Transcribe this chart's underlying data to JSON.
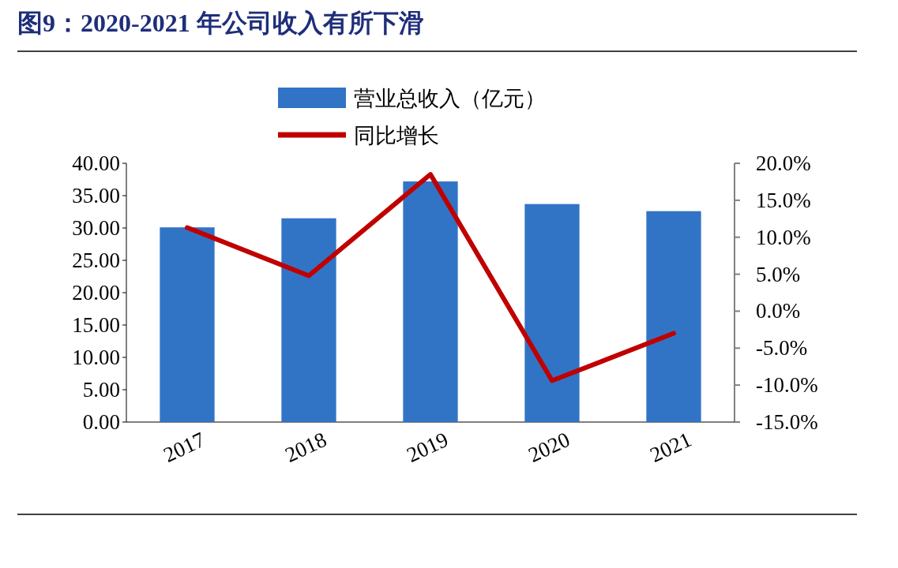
{
  "chart_data": {
    "type": "bar",
    "title": "图9：2020-2021 年公司收入有所下滑",
    "categories": [
      "2017",
      "2018",
      "2019",
      "2020",
      "2021"
    ],
    "series": [
      {
        "name": "营业总收入（亿元）",
        "color": "#3174c6",
        "values": [
          30.1,
          31.5,
          37.2,
          33.7,
          32.6
        ]
      },
      {
        "name": "同比增长",
        "type": "line",
        "axis": "y2",
        "color": "#c00000",
        "values": [
          11.3,
          4.8,
          18.5,
          -9.4,
          -3.0
        ]
      }
    ],
    "ylim": [
      0,
      40
    ],
    "yticks": [
      {
        "value": 0,
        "label": "0.00"
      },
      {
        "value": 5,
        "label": "5.00"
      },
      {
        "value": 10,
        "label": "10.00"
      },
      {
        "value": 15,
        "label": "15.00"
      },
      {
        "value": 20,
        "label": "20.00"
      },
      {
        "value": 25,
        "label": "25.00"
      },
      {
        "value": 30,
        "label": "30.00"
      },
      {
        "value": 35,
        "label": "35.00"
      },
      {
        "value": 40,
        "label": "40.00"
      }
    ],
    "y2lim": [
      -15,
      20
    ],
    "y2ticks": [
      {
        "value": -15,
        "label": "-15.0%"
      },
      {
        "value": -10,
        "label": "-10.0%"
      },
      {
        "value": -5,
        "label": "-5.0%"
      },
      {
        "value": 0,
        "label": "0.0%"
      },
      {
        "value": 5,
        "label": "5.0%"
      },
      {
        "value": 10,
        "label": "10.0%"
      },
      {
        "value": 15,
        "label": "15.0%"
      },
      {
        "value": 20,
        "label": "20.0%"
      }
    ],
    "legend": "top"
  }
}
